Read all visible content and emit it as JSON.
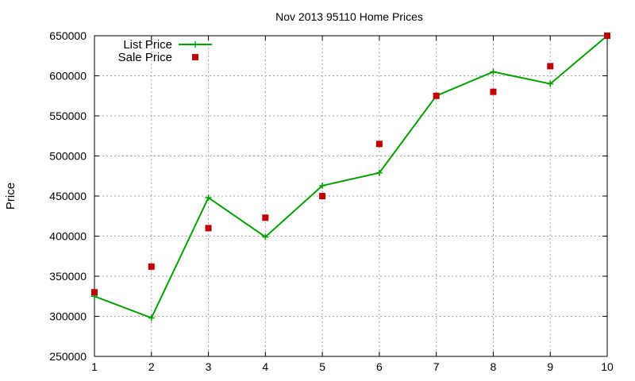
{
  "chart_data": {
    "type": "line",
    "title": "Nov 2013 95110 Home Prices",
    "xlabel": "",
    "ylabel": "Price",
    "x": [
      1,
      2,
      3,
      4,
      5,
      6,
      7,
      8,
      9,
      10
    ],
    "xlim": [
      1,
      10
    ],
    "ylim": [
      250000,
      650000
    ],
    "xticks": [
      "1",
      "2",
      "3",
      "4",
      "5",
      "6",
      "7",
      "8",
      "9",
      "10"
    ],
    "yticks": [
      "250000",
      "300000",
      "350000",
      "400000",
      "450000",
      "500000",
      "550000",
      "600000",
      "650000"
    ],
    "grid": true,
    "legend_position": "top-left",
    "series": [
      {
        "name": "List Price",
        "style": "line+plus",
        "color": "#00a000",
        "values": [
          325000,
          298000,
          448000,
          399000,
          463000,
          479000,
          575000,
          605000,
          590000,
          650000
        ]
      },
      {
        "name": "Sale Price",
        "style": "square",
        "color": "#c00000",
        "values": [
          330000,
          362000,
          410000,
          423000,
          450000,
          515000,
          575000,
          580000,
          612000,
          650000
        ]
      }
    ]
  }
}
